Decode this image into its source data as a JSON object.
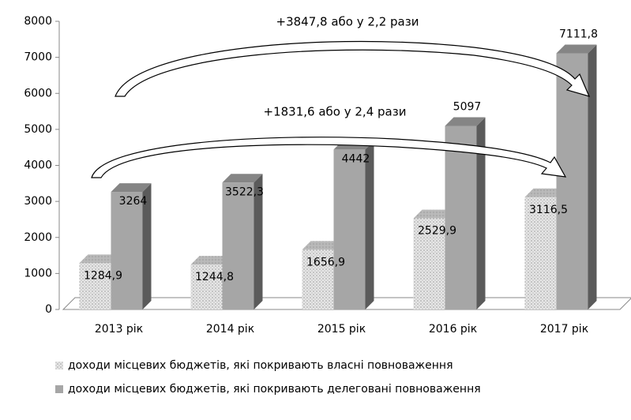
{
  "chart_data": {
    "type": "bar3d",
    "categories": [
      "2013 рік",
      "2014 рік",
      "2015 рік",
      "2016 рік",
      "2017 рік"
    ],
    "series": [
      {
        "name": "доходи місцевих бюджетів, які покривають власні повноваження",
        "color": "#e6e6e6",
        "pattern": "dots",
        "values": [
          1284.9,
          1244.8,
          1656.9,
          2529.9,
          3116.5
        ],
        "value_labels": [
          "1284,9",
          "1244,8",
          "1656,9",
          "2529,9",
          "3116,5"
        ]
      },
      {
        "name": "доходи місцевих бюджетів, які покривають делеговані повноваження",
        "color": "#a6a6a6",
        "values": [
          3264,
          3522.3,
          4442,
          5097,
          7111.8
        ],
        "value_labels": [
          "3264",
          "3522,3",
          "4442",
          "5097",
          "7111,8"
        ]
      }
    ],
    "annotations": [
      "+3847,8 або у 2,2 рази",
      "+1831,6 або у 2,4 рази"
    ],
    "ylim": [
      0,
      8000
    ],
    "yticks": [
      0,
      1000,
      2000,
      3000,
      4000,
      5000,
      6000,
      7000,
      8000
    ],
    "legend": "bottom"
  }
}
